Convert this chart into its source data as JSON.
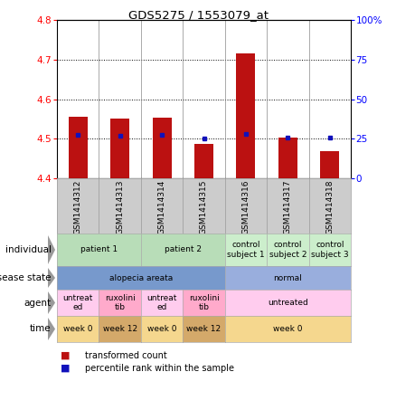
{
  "title": "GDS5275 / 1553079_at",
  "samples": [
    "GSM1414312",
    "GSM1414313",
    "GSM1414314",
    "GSM1414315",
    "GSM1414316",
    "GSM1414317",
    "GSM1414318"
  ],
  "transformed_counts": [
    4.555,
    4.552,
    4.553,
    4.487,
    4.715,
    4.504,
    4.469
  ],
  "percentile_ranks": [
    27.5,
    27.0,
    27.2,
    25.0,
    28.0,
    25.8,
    25.8
  ],
  "ylim_left": [
    4.4,
    4.8
  ],
  "ylim_right": [
    0,
    100
  ],
  "yticks_left": [
    4.4,
    4.5,
    4.6,
    4.7,
    4.8
  ],
  "yticks_right": [
    0,
    25,
    50,
    75,
    100
  ],
  "bar_color": "#bb1111",
  "dot_color": "#1111bb",
  "bar_bottom": 4.4,
  "annotation_rows": [
    {
      "key": "individual",
      "label": "individual",
      "groups": [
        {
          "cols": [
            0,
            1
          ],
          "text": "patient 1",
          "color": "#b8ddb8"
        },
        {
          "cols": [
            2,
            3
          ],
          "text": "patient 2",
          "color": "#b8ddb8"
        },
        {
          "cols": [
            4
          ],
          "text": "control\nsubject 1",
          "color": "#cceecc"
        },
        {
          "cols": [
            5
          ],
          "text": "control\nsubject 2",
          "color": "#cceecc"
        },
        {
          "cols": [
            6
          ],
          "text": "control\nsubject 3",
          "color": "#cceecc"
        }
      ]
    },
    {
      "key": "disease_state",
      "label": "disease state",
      "groups": [
        {
          "cols": [
            0,
            1,
            2,
            3
          ],
          "text": "alopecia areata",
          "color": "#7799cc"
        },
        {
          "cols": [
            4,
            5,
            6
          ],
          "text": "normal",
          "color": "#99aedd"
        }
      ]
    },
    {
      "key": "agent",
      "label": "agent",
      "groups": [
        {
          "cols": [
            0
          ],
          "text": "untreat\ned",
          "color": "#ffccee"
        },
        {
          "cols": [
            1
          ],
          "text": "ruxolini\ntib",
          "color": "#ffaacb"
        },
        {
          "cols": [
            2
          ],
          "text": "untreat\ned",
          "color": "#ffccee"
        },
        {
          "cols": [
            3
          ],
          "text": "ruxolini\ntib",
          "color": "#ffaacb"
        },
        {
          "cols": [
            4,
            5,
            6
          ],
          "text": "untreated",
          "color": "#ffccee"
        }
      ]
    },
    {
      "key": "time",
      "label": "time",
      "groups": [
        {
          "cols": [
            0
          ],
          "text": "week 0",
          "color": "#f5d78e"
        },
        {
          "cols": [
            1
          ],
          "text": "week 12",
          "color": "#d4a96a"
        },
        {
          "cols": [
            2
          ],
          "text": "week 0",
          "color": "#f5d78e"
        },
        {
          "cols": [
            3
          ],
          "text": "week 12",
          "color": "#d4a96a"
        },
        {
          "cols": [
            4,
            5,
            6
          ],
          "text": "week 0",
          "color": "#f5d78e"
        }
      ]
    }
  ]
}
